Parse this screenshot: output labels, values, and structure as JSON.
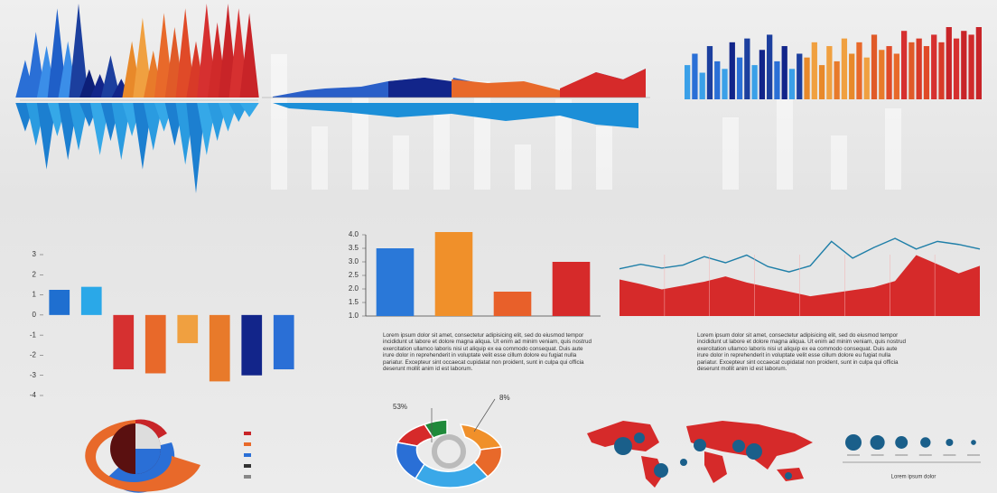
{
  "chart_data": [
    {
      "type": "spike",
      "series": [
        {
          "values": [
            40,
            70,
            55,
            95,
            60,
            100,
            30,
            25,
            45,
            20,
            60,
            85,
            50,
            90,
            75,
            95,
            60,
            100,
            80,
            100,
            95,
            90
          ],
          "colors": [
            "#2a6fd6",
            "#2a6fd6",
            "#3b8ee8",
            "#1f5fc8",
            "#3b8ee8",
            "#1c3f9e",
            "#0d1f78",
            "#12258a",
            "#1c3f9e",
            "#12258a",
            "#e8892a",
            "#f0a040",
            "#e87a2a",
            "#e8692a",
            "#e05a28",
            "#e04a28",
            "#d83a28",
            "#d63030",
            "#d02a2a",
            "#c82428",
            "#d63030",
            "#c82428"
          ]
        },
        {
          "values": [
            30,
            45,
            70,
            35,
            60,
            50,
            25,
            55,
            40,
            60,
            35,
            70,
            50,
            30,
            45,
            65,
            95,
            55,
            40,
            30,
            20,
            15
          ],
          "colors": [
            "#1c7fd0",
            "#2a9be0",
            "#1c7fd0",
            "#35a8e8",
            "#1c7fd0",
            "#2a9be0",
            "#1c7fd0",
            "#35a8e8",
            "#1c7fd0",
            "#2a9be0",
            "#35a8e8",
            "#1c7fd0",
            "#2a9be0",
            "#35a8e8",
            "#1c7fd0",
            "#2a9be0",
            "#1c7fd0",
            "#35a8e8",
            "#2a9be0",
            "#35a8e8",
            "#2a9be0",
            "#35a8e8"
          ]
        }
      ]
    },
    {
      "type": "column",
      "values": [
        45,
        60,
        35,
        70,
        50,
        40,
        75,
        55,
        80,
        45,
        65,
        85,
        50,
        70,
        40,
        60,
        55,
        75,
        45,
        70,
        50,
        80,
        60,
        75,
        55,
        85,
        65,
        70,
        60,
        90,
        75,
        80,
        70,
        85,
        75,
        95,
        80,
        90,
        85,
        95
      ],
      "colors": [
        "#3aa0e8",
        "#2a6fd6",
        "#3aa0e8",
        "#1c3f9e",
        "#2a6fd6",
        "#3aa0e8",
        "#12258a",
        "#2a6fd6",
        "#1c3f9e",
        "#3aa0e8",
        "#12258a",
        "#1c3f9e",
        "#2a6fd6",
        "#12258a",
        "#3aa0e8",
        "#1c3f9e",
        "#e8892a",
        "#f0a040",
        "#e8892a",
        "#f0a040",
        "#e87a2a",
        "#f0a040",
        "#e8892a",
        "#e8692a",
        "#f0a040",
        "#e05a28",
        "#e87a2a",
        "#e04a28",
        "#e8692a",
        "#d63030",
        "#e05a28",
        "#d83a28",
        "#e04a28",
        "#d63030",
        "#d83a28",
        "#c82428",
        "#d63030",
        "#c82428",
        "#d02a2a",
        "#c82428"
      ]
    },
    {
      "type": "bar",
      "values": [
        1.25,
        1.4,
        -2.7,
        -2.9,
        -1.4,
        -3.3,
        -3.0,
        -2.7
      ],
      "colors": [
        "#1f6fd0",
        "#2aa8e8",
        "#d63030",
        "#e8692a",
        "#f0a040",
        "#e87a2a",
        "#12258a",
        "#2a6fd6"
      ],
      "ylim": [
        -4,
        3
      ],
      "yticks": [
        3,
        2,
        1,
        0,
        -1,
        -2,
        -3,
        -4
      ]
    },
    {
      "type": "bar",
      "values": [
        3.5,
        4.1,
        1.9,
        3.0
      ],
      "colors": [
        "#2a78d8",
        "#f0902a",
        "#e8602a",
        "#d62a2a"
      ],
      "ylim": [
        1,
        4
      ],
      "yticks": [
        {
          "value": 4,
          "label": "4.0"
        },
        {
          "value": 3.5,
          "label": "3.5"
        },
        {
          "value": 3,
          "label": "3.0"
        },
        {
          "value": 2.5,
          "label": "2.5"
        },
        {
          "value": 2,
          "label": "2.0"
        },
        {
          "value": 1.5,
          "label": "1.5"
        },
        {
          "value": 1,
          "label": "1.0"
        }
      ],
      "axes": true
    },
    {
      "type": "linearea",
      "series": [
        {
          "color": "#1f7fa8",
          "values": [
            62,
            68,
            63,
            67,
            78,
            70,
            80,
            65,
            58,
            66,
            98,
            76,
            90,
            102,
            88,
            98,
            94,
            88
          ]
        },
        {
          "color": "#d62a2a",
          "values": [
            48,
            42,
            35,
            40,
            45,
            52,
            44,
            38,
            32,
            26,
            30,
            34,
            38,
            46,
            80,
            68,
            56,
            66
          ]
        }
      ]
    },
    {
      "type": "bubble",
      "values": [
        10,
        8,
        6,
        4,
        2,
        1
      ],
      "label": "Lorem ipsum dolor"
    }
  ],
  "texts": [
    "Lorem ipsum dolor sit amet, consectetur adipisicing elit, sed do eiusmod tempor incididunt ut labore et dolore magna aliqua. Ut enim ad minim veniam, quis nostrud exercitation ullamco laboris nisi ut aliquip ex ea commodo consequat. Duis aute irure dolor in reprehenderit in voluptate velit esse cillum dolore eu fugiat nulla pariatur. Excepteur sint occaecat cupidatat non proident, sunt in culpa qui officia deserunt mollit anim id est laborum.",
    "Lorem ipsum dolor sit amet, consectetur adipisicing elit, sed do eiusmod tempor incididunt ut labore et dolore magna aliqua. Ut enim ad minim veniam, quis nostrud exercitation ullamco laboris nisi ut aliquip ex ea commodo consequat. Duis aute irure dolor in reprehenderit in voluptate velit esse cillum dolore eu fugiat nulla pariatur. Excepteur sint occaecat cupidatat non proident, sunt in culpa qui officia deserunt mollit anim id est laborum."
  ],
  "annotations": [
    "53%",
    "8%"
  ]
}
